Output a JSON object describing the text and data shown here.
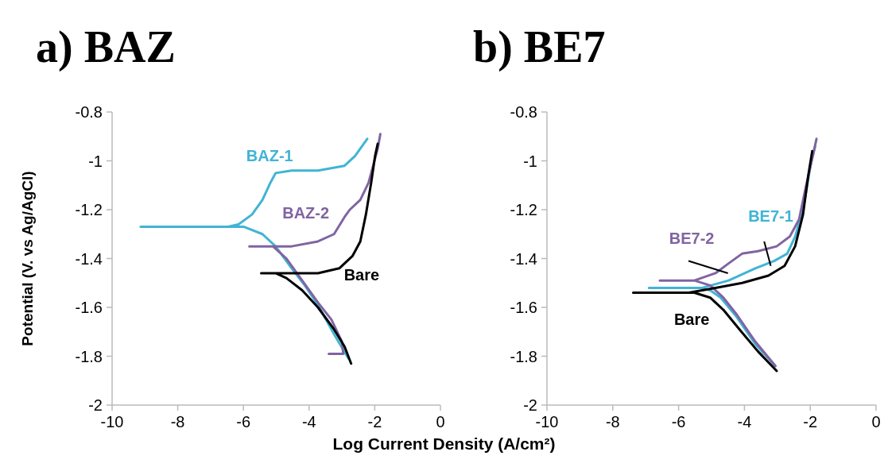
{
  "chart_data": [
    {
      "type": "line",
      "title": "a) BAZ",
      "ylabel": "Potential (V. vs Ag/AgCl)",
      "xlabel": "Log Current Density (A/cm²)",
      "xlim": [
        -10,
        0
      ],
      "xticks": [
        -10,
        -8,
        -6,
        -4,
        -2,
        0
      ],
      "ylim": [
        -2,
        -0.8
      ],
      "yticks": [
        -2,
        -1.8,
        -1.6,
        -1.4,
        -1.2,
        -1,
        -0.8
      ],
      "grid": false,
      "marker": "none",
      "line_style": "solid",
      "series": [
        {
          "name": "BAZ-1",
          "color": "#41b4d4",
          "x": [
            -2.8,
            -3.24,
            -3.73,
            -4.13,
            -4.53,
            -5.02,
            -5.42,
            -5.98,
            -6.47,
            -9.13,
            -6.47,
            -6.15,
            -5.74,
            -5.42,
            -5.18,
            -5.02,
            -4.53,
            -3.73,
            -2.92,
            -2.6,
            -2.23
          ],
          "values": [
            -1.81,
            -1.71,
            -1.59,
            -1.51,
            -1.44,
            -1.35,
            -1.3,
            -1.27,
            -1.27,
            -1.27,
            -1.27,
            -1.26,
            -1.22,
            -1.16,
            -1.09,
            -1.05,
            -1.04,
            -1.04,
            -1.02,
            -0.98,
            -0.91
          ]
        },
        {
          "name": "BAZ-2",
          "color": "#8064a2",
          "x": [
            -3.4,
            -2.96,
            -3.0,
            -3.32,
            -3.73,
            -4.21,
            -4.69,
            -5.1,
            -5.82,
            -4.53,
            -3.73,
            -3.24,
            -2.92,
            -2.76,
            -2.44,
            -2.19,
            -2.03,
            -1.91,
            -1.83
          ],
          "values": [
            -1.79,
            -1.79,
            -1.74,
            -1.65,
            -1.58,
            -1.49,
            -1.4,
            -1.35,
            -1.35,
            -1.35,
            -1.33,
            -1.3,
            -1.23,
            -1.2,
            -1.16,
            -1.09,
            -1.01,
            -0.95,
            -0.89
          ]
        },
        {
          "name": "Bare",
          "color": "#000000",
          "x": [
            -2.72,
            -2.92,
            -3.24,
            -3.73,
            -4.21,
            -4.69,
            -5.02,
            -5.46,
            -4.53,
            -3.73,
            -3.08,
            -2.68,
            -2.44,
            -2.27,
            -2.11,
            -1.99,
            -1.91
          ],
          "values": [
            -1.83,
            -1.76,
            -1.69,
            -1.6,
            -1.53,
            -1.48,
            -1.46,
            -1.46,
            -1.46,
            -1.46,
            -1.44,
            -1.39,
            -1.33,
            -1.22,
            -1.09,
            -0.98,
            -0.93
          ]
        }
      ]
    },
    {
      "type": "line",
      "title": "b) BE7",
      "xlim": [
        -10,
        0
      ],
      "xticks": [
        -10,
        -8,
        -6,
        -4,
        -2,
        0
      ],
      "ylim": [
        -2,
        -0.8
      ],
      "yticks": [
        -2,
        -1.8,
        -1.6,
        -1.4,
        -1.2,
        -1,
        -0.8
      ],
      "grid": false,
      "marker": "none",
      "line_style": "solid",
      "series": [
        {
          "name": "BE7-1",
          "color": "#41b4d4",
          "x": [
            -3.06,
            -3.67,
            -4.23,
            -4.72,
            -5.04,
            -5.36,
            -6.9,
            -5.28,
            -4.48,
            -3.67,
            -3.1,
            -2.7,
            -2.46,
            -2.22,
            -1.98,
            -1.85
          ],
          "values": [
            -1.84,
            -1.75,
            -1.64,
            -1.56,
            -1.53,
            -1.52,
            -1.52,
            -1.52,
            -1.49,
            -1.44,
            -1.41,
            -1.38,
            -1.31,
            -1.2,
            -1.01,
            -0.94
          ]
        },
        {
          "name": "BE7-2",
          "color": "#8064a2",
          "x": [
            -3.06,
            -3.67,
            -4.23,
            -4.64,
            -5.04,
            -5.52,
            -6.57,
            -5.52,
            -4.88,
            -4.48,
            -4.07,
            -3.59,
            -3.02,
            -2.62,
            -2.34,
            -2.14,
            -1.94,
            -1.81
          ],
          "values": [
            -1.84,
            -1.74,
            -1.63,
            -1.56,
            -1.51,
            -1.49,
            -1.49,
            -1.49,
            -1.46,
            -1.42,
            -1.38,
            -1.37,
            -1.35,
            -1.31,
            -1.24,
            -1.11,
            -0.99,
            -0.91
          ]
        },
        {
          "name": "Bare",
          "color": "#000000",
          "x": [
            -3.02,
            -3.59,
            -4.15,
            -4.64,
            -5.04,
            -5.52,
            -7.38,
            -5.69,
            -4.88,
            -4.07,
            -3.27,
            -2.78,
            -2.46,
            -2.22,
            -2.06,
            -1.94
          ],
          "values": [
            -1.86,
            -1.78,
            -1.69,
            -1.61,
            -1.56,
            -1.54,
            -1.54,
            -1.54,
            -1.52,
            -1.5,
            -1.47,
            -1.43,
            -1.35,
            -1.22,
            -1.06,
            -0.96
          ]
        }
      ]
    }
  ]
}
